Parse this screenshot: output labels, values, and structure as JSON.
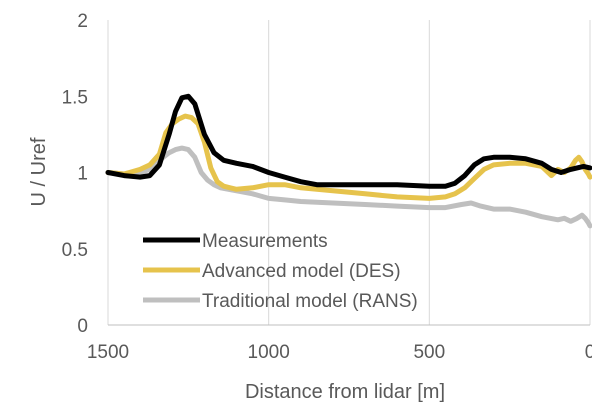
{
  "chart_data": {
    "type": "line",
    "title": "",
    "xlabel": "Distance from lidar [m]",
    "ylabel": "U / Uref",
    "xlim": [
      1500,
      0
    ],
    "x_reversed": true,
    "ylim": [
      0,
      2
    ],
    "x_ticks": [
      1500,
      1000,
      500,
      0
    ],
    "x_tick_labels": [
      "1500",
      "1000",
      "500",
      "0"
    ],
    "y_ticks": [
      0,
      0.5,
      1,
      1.5,
      2
    ],
    "y_tick_labels": [
      "0",
      "0.5",
      "1",
      "1.5",
      "2"
    ],
    "grid": "vertical",
    "legend_position": "bottom-left",
    "series": [
      {
        "name": "Measurements",
        "color": "#000000",
        "x": [
          1500,
          1450,
          1400,
          1370,
          1340,
          1310,
          1290,
          1270,
          1250,
          1230,
          1200,
          1170,
          1140,
          1100,
          1050,
          1000,
          950,
          900,
          850,
          800,
          700,
          600,
          500,
          450,
          420,
          390,
          360,
          330,
          300,
          250,
          200,
          150,
          120,
          90,
          60,
          40,
          20,
          0
        ],
        "y": [
          1.0,
          0.98,
          0.97,
          0.98,
          1.05,
          1.25,
          1.4,
          1.49,
          1.5,
          1.45,
          1.25,
          1.13,
          1.08,
          1.06,
          1.04,
          1.0,
          0.97,
          0.94,
          0.92,
          0.92,
          0.92,
          0.92,
          0.91,
          0.91,
          0.93,
          0.98,
          1.05,
          1.09,
          1.1,
          1.1,
          1.09,
          1.06,
          1.02,
          1.0,
          1.02,
          1.03,
          1.04,
          1.03
        ]
      },
      {
        "name": "Advanced model (DES)",
        "color": "#e6c34c",
        "x": [
          1500,
          1450,
          1400,
          1370,
          1340,
          1320,
          1300,
          1280,
          1260,
          1240,
          1220,
          1200,
          1180,
          1160,
          1140,
          1120,
          1100,
          1050,
          1000,
          950,
          900,
          800,
          700,
          600,
          500,
          450,
          420,
          390,
          360,
          330,
          300,
          250,
          200,
          150,
          120,
          100,
          80,
          60,
          45,
          35,
          25,
          15,
          5,
          0
        ],
        "y": [
          1.0,
          0.99,
          1.02,
          1.05,
          1.12,
          1.26,
          1.32,
          1.35,
          1.37,
          1.36,
          1.32,
          1.2,
          1.03,
          0.94,
          0.91,
          0.9,
          0.89,
          0.9,
          0.92,
          0.92,
          0.9,
          0.88,
          0.86,
          0.84,
          0.83,
          0.84,
          0.86,
          0.9,
          0.96,
          1.02,
          1.05,
          1.06,
          1.06,
          1.04,
          0.98,
          1.02,
          1.0,
          1.03,
          1.08,
          1.1,
          1.07,
          1.02,
          0.99,
          0.97
        ]
      },
      {
        "name": "Traditional model (RANS)",
        "color": "#bfbfbf",
        "x": [
          1500,
          1450,
          1400,
          1370,
          1340,
          1310,
          1290,
          1270,
          1250,
          1230,
          1210,
          1190,
          1170,
          1150,
          1100,
          1050,
          1000,
          950,
          900,
          800,
          700,
          600,
          500,
          450,
          400,
          370,
          340,
          300,
          250,
          200,
          150,
          100,
          80,
          60,
          40,
          25,
          15,
          5,
          0
        ],
        "y": [
          1.0,
          0.99,
          1.0,
          1.02,
          1.08,
          1.13,
          1.15,
          1.16,
          1.15,
          1.1,
          1.0,
          0.95,
          0.92,
          0.9,
          0.88,
          0.86,
          0.83,
          0.82,
          0.81,
          0.8,
          0.79,
          0.78,
          0.77,
          0.77,
          0.79,
          0.8,
          0.78,
          0.76,
          0.76,
          0.74,
          0.71,
          0.69,
          0.7,
          0.68,
          0.7,
          0.72,
          0.7,
          0.67,
          0.65
        ]
      }
    ]
  }
}
